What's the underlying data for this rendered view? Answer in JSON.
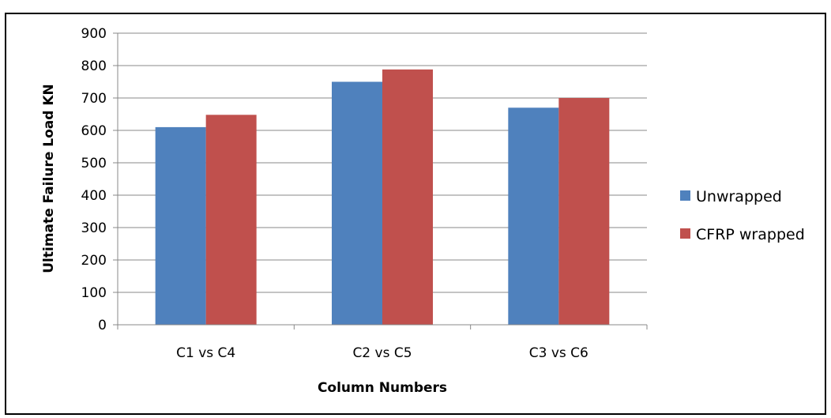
{
  "chart_data": {
    "type": "bar",
    "title": "",
    "xlabel": "Column Numbers",
    "ylabel": "Ultimate Failure Load KN",
    "categories": [
      "C1 vs C4",
      "C2 vs C5",
      "C3 vs C6"
    ],
    "series": [
      {
        "name": "Unwrapped",
        "values": [
          610,
          750,
          670
        ],
        "color": "#4F81BD"
      },
      {
        "name": "CFRP wrapped",
        "values": [
          648,
          788,
          700
        ],
        "color": "#C0504D"
      }
    ],
    "ylim": [
      0,
      900
    ],
    "yticks": [
      0,
      100,
      200,
      300,
      400,
      500,
      600,
      700,
      800,
      900
    ],
    "grid": true,
    "gridline_color": "#888888",
    "legend_position": "right"
  }
}
